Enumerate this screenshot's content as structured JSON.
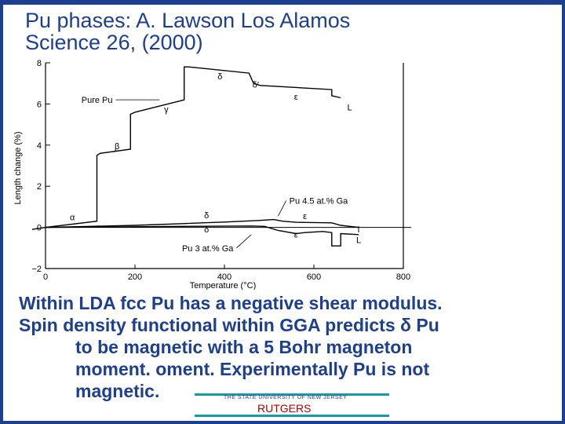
{
  "slide": {
    "title_line1": "Pu  phases: A. Lawson  Los Alamos",
    "title_line2": "Science 26, (2000)",
    "body_line1": "Within LDA fcc Pu has a negative shear modulus.",
    "body_line2": "Spin density functional within GGA  predicts   δ Pu",
    "body_line3": "to be magnetic with a 5  Bohr magneton",
    "body_line4": "moment. oment. Experimentally Pu is not",
    "body_line5": "magnetic.",
    "footer_sub": "THE STATE UNIVERSITY OF NEW JERSEY",
    "footer_name": "RUTGERS",
    "colors": {
      "title": "#1d3f8f",
      "footer_lines": "#179aa6",
      "footer_name": "#b30000"
    }
  },
  "chart_data": {
    "type": "line",
    "xlabel": "Temperature (°C)",
    "ylabel": "Length change (%)",
    "xlim": [
      0,
      800
    ],
    "ylim": [
      -2,
      8
    ],
    "xticks": [
      "0",
      "200",
      "400",
      "600",
      "800"
    ],
    "yticks": [
      "−2",
      "0",
      "2",
      "4",
      "6",
      "8"
    ],
    "grid": false,
    "series": [
      {
        "name": "Pure Pu",
        "points": [
          [
            -30,
            -0.1
          ],
          [
            0,
            0
          ],
          [
            115,
            0.3
          ],
          [
            115,
            3.5
          ],
          [
            122,
            3.6
          ],
          [
            190,
            3.8
          ],
          [
            190,
            5.5
          ],
          [
            200,
            5.6
          ],
          [
            310,
            6.2
          ],
          [
            310,
            7.8
          ],
          [
            320,
            7.8
          ],
          [
            455,
            7.5
          ],
          [
            465,
            7.0
          ],
          [
            480,
            6.9
          ],
          [
            640,
            6.7
          ],
          [
            640,
            6.4
          ],
          [
            660,
            6.3
          ]
        ],
        "labels": [
          {
            "text": "α",
            "x": 60,
            "y": 0.35
          },
          {
            "text": "β",
            "x": 160,
            "y": 3.8
          },
          {
            "text": "γ",
            "x": 270,
            "y": 5.6
          },
          {
            "text": "δ",
            "x": 390,
            "y": 7.2
          },
          {
            "text": "δ′",
            "x": 470,
            "y": 6.8
          },
          {
            "text": "ε",
            "x": 560,
            "y": 6.2
          },
          {
            "text": "L",
            "x": 680,
            "y": 5.7
          }
        ]
      },
      {
        "name": "Pu 4.5 at.% Ga",
        "points": [
          [
            0,
            0
          ],
          [
            100,
            0.05
          ],
          [
            200,
            0.1
          ],
          [
            300,
            0.18
          ],
          [
            400,
            0.26
          ],
          [
            480,
            0.34
          ],
          [
            510,
            0.38
          ],
          [
            530,
            0.3
          ],
          [
            560,
            0.25
          ],
          [
            640,
            0.22
          ],
          [
            660,
            0.1
          ],
          [
            700,
            0.0
          ]
        ],
        "labels": [
          {
            "text": "δ",
            "x": 360,
            "y": 0.45
          },
          {
            "text": "ε",
            "x": 580,
            "y": 0.4
          },
          {
            "text": "l",
            "x": 700,
            "y": -0.25
          }
        ]
      },
      {
        "name": "Pu 3 at.% Ga",
        "points": [
          [
            0,
            0
          ],
          [
            150,
            0.02
          ],
          [
            300,
            0.05
          ],
          [
            460,
            0.07
          ],
          [
            490,
            0.05
          ],
          [
            520,
            -0.15
          ],
          [
            560,
            -0.3
          ],
          [
            580,
            -0.25
          ],
          [
            620,
            -0.2
          ],
          [
            640,
            -0.25
          ],
          [
            640,
            -0.9
          ],
          [
            660,
            -0.9
          ],
          [
            660,
            -0.3
          ],
          [
            700,
            -0.35
          ]
        ],
        "labels": [
          {
            "text": "δ",
            "x": 360,
            "y": -0.25
          },
          {
            "text": "ε",
            "x": 560,
            "y": -0.5
          },
          {
            "text": "L",
            "x": 700,
            "y": -0.75
          }
        ]
      }
    ]
  }
}
